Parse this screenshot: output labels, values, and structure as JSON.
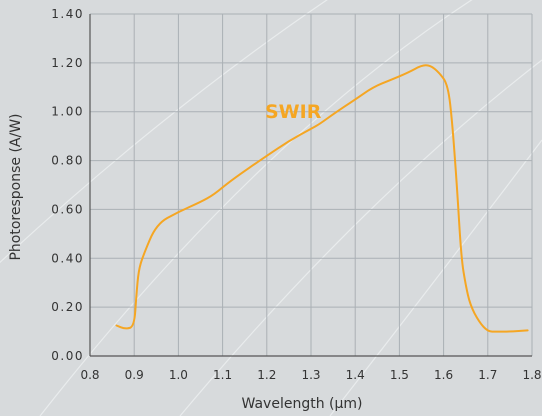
{
  "chart_data": {
    "type": "line",
    "title": "",
    "xlabel": "Wavelength (µm)",
    "ylabel": "Photoresponse (A/W)",
    "xlim": [
      0.8,
      1.8
    ],
    "ylim": [
      0.0,
      1.4
    ],
    "xticks": [
      "0.8",
      "0.9",
      "1.0",
      "1.1",
      "1.2",
      "1.3",
      "1.4",
      "1.5",
      "1.6",
      "1.7",
      "1.8"
    ],
    "yticks": [
      "0.00",
      "0.20",
      "0.40",
      "0.60",
      "0.80",
      "1.00",
      "1.20",
      "1.40"
    ],
    "grid": true,
    "annotation": "SWIR",
    "colors": {
      "line": "#f5a623",
      "grid": "#aab0b5",
      "background": "#d7dadc"
    },
    "series": [
      {
        "values_x": [
          0.86,
          0.88,
          0.9,
          0.905,
          0.91,
          0.92,
          0.95,
          1.0,
          1.05,
          1.08,
          1.12,
          1.2,
          1.25,
          1.3,
          1.32,
          1.35,
          1.4,
          1.44,
          1.48,
          1.52,
          1.55,
          1.57,
          1.59,
          1.61,
          1.62,
          1.63,
          1.64,
          1.65,
          1.66,
          1.68,
          1.7,
          1.72,
          1.75,
          1.79
        ],
        "values_y": [
          0.125,
          0.11,
          0.12,
          0.25,
          0.35,
          0.41,
          0.54,
          0.59,
          0.63,
          0.66,
          0.72,
          0.82,
          0.88,
          0.93,
          0.95,
          0.99,
          1.05,
          1.1,
          1.13,
          1.16,
          1.19,
          1.19,
          1.16,
          1.11,
          0.95,
          0.7,
          0.4,
          0.29,
          0.21,
          0.14,
          0.1,
          0.1,
          0.1,
          0.105
        ]
      }
    ]
  }
}
